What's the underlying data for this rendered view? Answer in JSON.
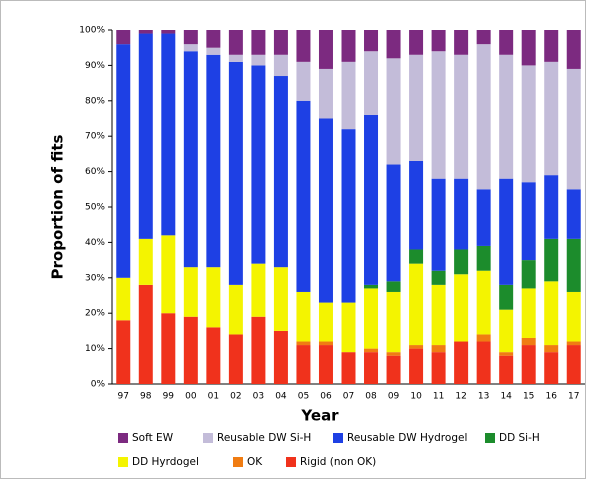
{
  "chart_data": {
    "type": "stacked_bar",
    "xlabel": "Year",
    "ylabel": "Proportion of fits",
    "categories": [
      "97",
      "98",
      "99",
      "00",
      "01",
      "02",
      "03",
      "04",
      "05",
      "06",
      "07",
      "08",
      "09",
      "10",
      "11",
      "12",
      "13",
      "14",
      "15",
      "16",
      "17"
    ],
    "ylim": [
      0,
      100
    ],
    "yticks": [
      {
        "value": 0,
        "label": "0%"
      },
      {
        "value": 10,
        "label": "10%"
      },
      {
        "value": 20,
        "label": "20%"
      },
      {
        "value": 30,
        "label": "30%"
      },
      {
        "value": 40,
        "label": "40%"
      },
      {
        "value": 50,
        "label": "50%"
      },
      {
        "value": 60,
        "label": "60%"
      },
      {
        "value": 70,
        "label": "70%"
      },
      {
        "value": 80,
        "label": "80%"
      },
      {
        "value": 90,
        "label": "90%"
      },
      {
        "value": 100,
        "label": "100%"
      }
    ],
    "series": [
      {
        "name": "Rigid (non OK)",
        "color": "#f0321c",
        "values": [
          18,
          28,
          20,
          19,
          16,
          14,
          19,
          15,
          11,
          11,
          9,
          9,
          8,
          10,
          9,
          12,
          12,
          8,
          11,
          9,
          11
        ]
      },
      {
        "name": "OK",
        "color": "#f07c12",
        "values": [
          0,
          0,
          0,
          0,
          0,
          0,
          0,
          0,
          1,
          1,
          0,
          1,
          1,
          1,
          2,
          0,
          2,
          1,
          2,
          2,
          1
        ]
      },
      {
        "name": "DD Hyrdogel",
        "color": "#f4f400",
        "values": [
          12,
          13,
          22,
          14,
          17,
          14,
          15,
          18,
          14,
          11,
          14,
          17,
          17,
          23,
          17,
          19,
          18,
          12,
          14,
          18,
          14
        ]
      },
      {
        "name": "DD Si-H",
        "color": "#1c8c2c",
        "values": [
          0,
          0,
          0,
          0,
          0,
          0,
          0,
          0,
          0,
          0,
          0,
          1,
          3,
          4,
          4,
          7,
          7,
          7,
          8,
          12,
          15
        ]
      },
      {
        "name": "Reusable DW Hydrogel",
        "color": "#1e40e4",
        "values": [
          66,
          58,
          57,
          61,
          60,
          63,
          56,
          54,
          54,
          52,
          49,
          48,
          33,
          25,
          26,
          20,
          16,
          30,
          22,
          18,
          14
        ]
      },
      {
        "name": "Reusable DW Si-H",
        "color": "#c3bcd9",
        "values": [
          0,
          0,
          0,
          2,
          2,
          2,
          3,
          6,
          11,
          14,
          19,
          18,
          30,
          30,
          36,
          35,
          41,
          35,
          33,
          32,
          34
        ]
      },
      {
        "name": "Soft EW",
        "color": "#7c2a80",
        "values": [
          4,
          1,
          1,
          4,
          5,
          7,
          7,
          7,
          9,
          11,
          9,
          6,
          8,
          7,
          6,
          7,
          4,
          7,
          10,
          9,
          11
        ]
      }
    ],
    "legend_order": [
      6,
      5,
      4,
      3,
      2,
      1,
      0
    ]
  }
}
